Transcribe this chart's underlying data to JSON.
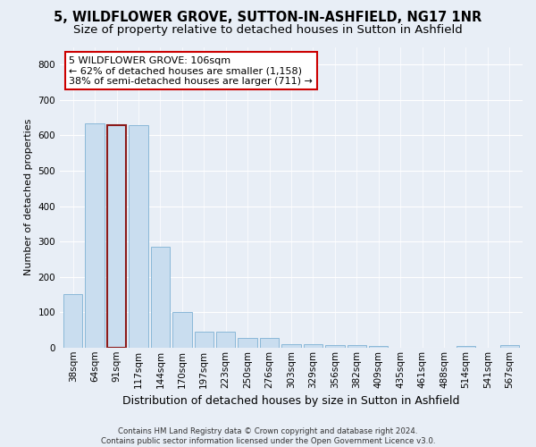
{
  "title1": "5, WILDFLOWER GROVE, SUTTON-IN-ASHFIELD, NG17 1NR",
  "title2": "Size of property relative to detached houses in Sutton in Ashfield",
  "xlabel": "Distribution of detached houses by size in Sutton in Ashfield",
  "ylabel": "Number of detached properties",
  "categories": [
    "38sqm",
    "64sqm",
    "91sqm",
    "117sqm",
    "144sqm",
    "170sqm",
    "197sqm",
    "223sqm",
    "250sqm",
    "276sqm",
    "303sqm",
    "329sqm",
    "356sqm",
    "382sqm",
    "409sqm",
    "435sqm",
    "461sqm",
    "488sqm",
    "514sqm",
    "541sqm",
    "567sqm"
  ],
  "values": [
    150,
    635,
    630,
    630,
    285,
    100,
    45,
    45,
    28,
    28,
    10,
    10,
    8,
    8,
    5,
    0,
    0,
    0,
    5,
    0,
    8
  ],
  "bar_color": "#c9ddef",
  "bar_edge_color": "#8ab8d8",
  "highlight_bar_index": 2,
  "highlight_edge_color": "#8b1a1a",
  "annotation_text": "5 WILDFLOWER GROVE: 106sqm\n← 62% of detached houses are smaller (1,158)\n38% of semi-detached houses are larger (711) →",
  "annotation_box_color": "white",
  "annotation_border_color": "#cc0000",
  "footnote1": "Contains HM Land Registry data © Crown copyright and database right 2024.",
  "footnote2": "Contains public sector information licensed under the Open Government Licence v3.0.",
  "ylim": [
    0,
    850
  ],
  "yticks": [
    0,
    100,
    200,
    300,
    400,
    500,
    600,
    700,
    800
  ],
  "background_color": "#e8eef6",
  "grid_color": "white",
  "title1_fontsize": 10.5,
  "title2_fontsize": 9.5,
  "xlabel_fontsize": 9,
  "ylabel_fontsize": 8,
  "tick_fontsize": 7.5,
  "annot_fontsize": 8
}
